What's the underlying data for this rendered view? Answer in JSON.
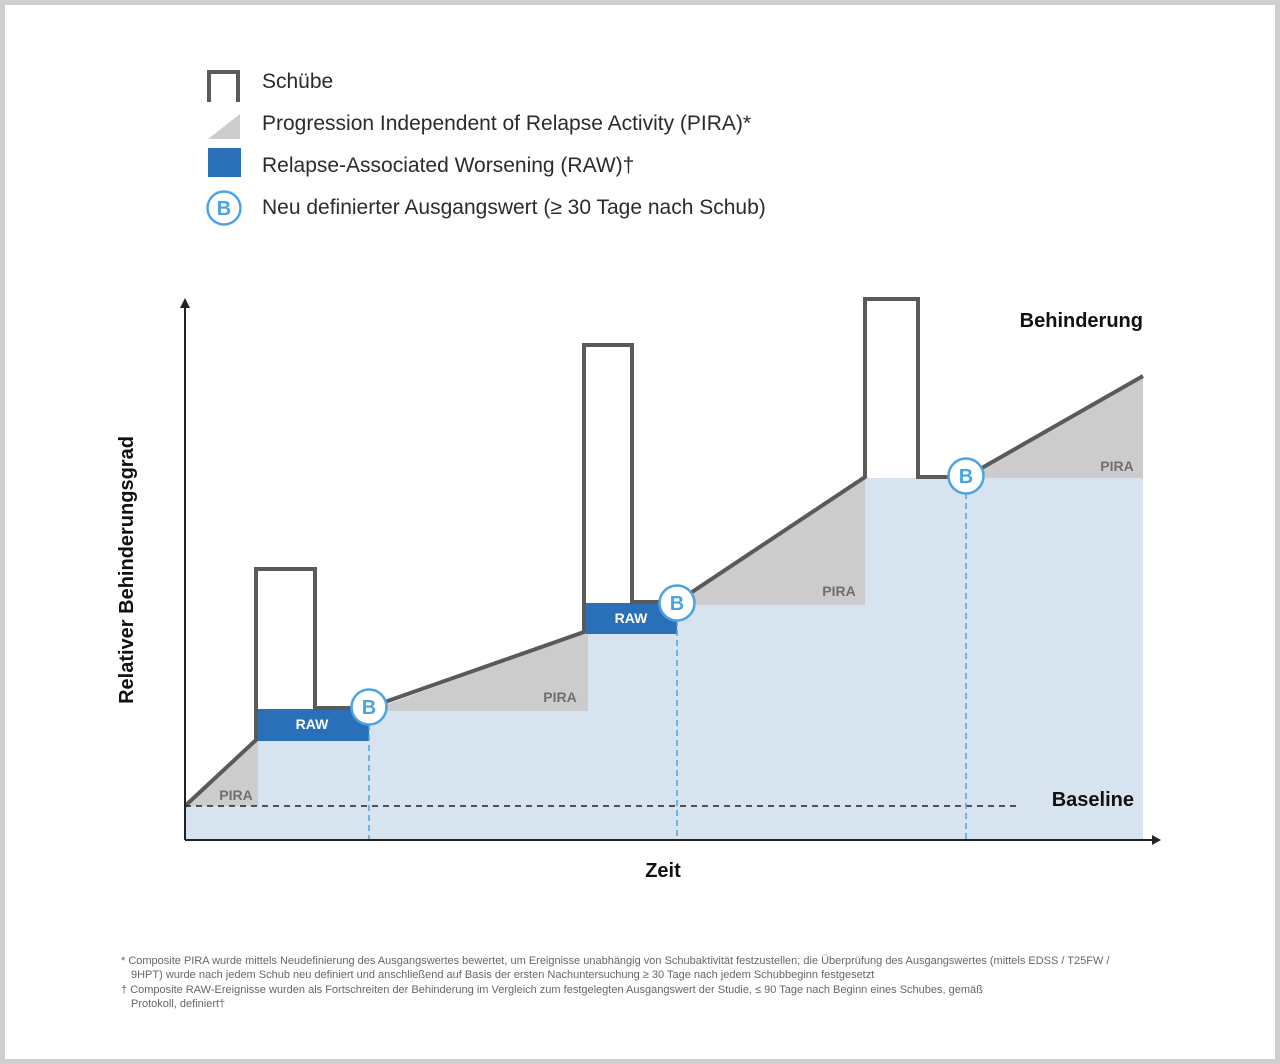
{
  "legend": {
    "relapses": "Schübe",
    "pira": "Progression Independent of Relapse Activity (PIRA)*",
    "raw": "Relapse-Associated Worsening (RAW)†",
    "baseline_b": "Neu definierter Ausgangswert (≥ 30 Tage nach Schub)",
    "b_symbol": "B"
  },
  "axes": {
    "y_label": "Relativer Behinderungsgrad",
    "x_label": "Zeit"
  },
  "labels": {
    "disability": "Behinderung",
    "baseline": "Baseline",
    "pira": "PIRA",
    "raw": "RAW",
    "b": "B"
  },
  "footnotes": {
    "f1_line1": "* Composite PIRA wurde mittels Neudefinierung des Ausgangswertes bewertet, um Ereignisse unabhängig von Schubaktivität festzustellen; die Überprüfung des Ausgangswertes (mittels EDSS / T25FW /",
    "f1_line2": "9HPT) wurde nach jedem Schub neu definiert und anschließend auf Basis der ersten Nachuntersuchung ≥ 30 Tage nach jedem Schubbeginn festgesetzt",
    "f2_line1": "† Composite RAW-Ereignisse wurden als Fortschreiten der Behinderung im Vergleich zum festgelegten Ausgangswert der Studie, ≤ 90 Tage nach Beginn eines Schubes, gemäß",
    "f2_line2": "Protokoll, definiert†"
  },
  "colors": {
    "relapse_outline": "#5a5a5a",
    "pira_fill": "#cccccc",
    "raw_fill": "#2a70b8",
    "baseline_area": "#d7e3ef",
    "b_circle": "#4aa4e3"
  }
}
